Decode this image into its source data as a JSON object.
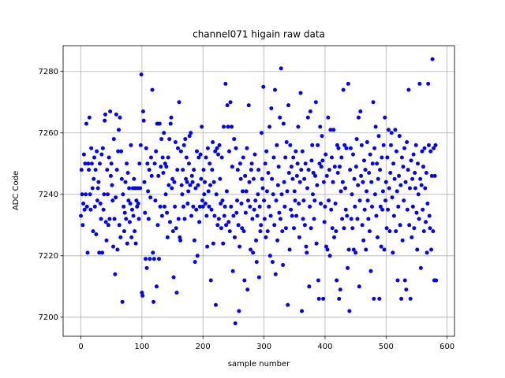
{
  "chart_data": {
    "type": "scatter",
    "title": "channel071 higain raw data",
    "x_label": "sample number",
    "y_label": "ADC Code",
    "color": "#0000ff",
    "grid": true,
    "xlim": [
      -29.1,
      612.1
    ],
    "ylim": [
      7193.8,
      7288.4
    ],
    "xticks": [
      0,
      100,
      200,
      300,
      400,
      500,
      600
    ],
    "yticks": [
      7200,
      7220,
      7240,
      7260,
      7280
    ],
    "x": [
      0,
      1,
      2,
      3,
      4,
      5,
      6,
      7,
      8,
      9,
      10,
      11,
      12,
      13,
      14,
      15,
      16,
      17,
      18,
      19,
      20,
      21,
      22,
      23,
      24,
      25,
      26,
      27,
      28,
      29,
      30,
      31,
      32,
      33,
      34,
      35,
      36,
      37,
      38,
      39,
      40,
      41,
      42,
      43,
      44,
      45,
      46,
      47,
      48,
      49,
      50,
      51,
      52,
      53,
      54,
      55,
      56,
      57,
      58,
      59,
      60,
      61,
      62,
      63,
      64,
      65,
      66,
      67,
      68,
      69,
      70,
      71,
      72,
      73,
      74,
      75,
      76,
      77,
      78,
      79,
      80,
      81,
      82,
      83,
      84,
      85,
      86,
      87,
      88,
      89,
      90,
      91,
      92,
      93,
      94,
      95,
      96,
      97,
      98,
      99,
      100,
      101,
      102,
      103,
      104,
      105,
      106,
      107,
      108,
      109,
      110,
      111,
      112,
      113,
      114,
      115,
      116,
      117,
      118,
      119,
      120,
      121,
      122,
      123,
      124,
      125,
      126,
      127,
      128,
      129,
      130,
      131,
      132,
      133,
      134,
      135,
      136,
      137,
      138,
      139,
      140,
      141,
      142,
      143,
      144,
      145,
      146,
      147,
      148,
      149,
      150,
      151,
      152,
      153,
      154,
      155,
      156,
      157,
      158,
      159,
      160,
      161,
      162,
      163,
      164,
      165,
      166,
      167,
      168,
      169,
      170,
      171,
      172,
      173,
      174,
      175,
      176,
      177,
      178,
      179,
      180,
      181,
      182,
      183,
      184,
      185,
      186,
      187,
      188,
      189,
      190,
      191,
      192,
      193,
      194,
      195,
      196,
      197,
      198,
      199,
      200,
      201,
      202,
      203,
      204,
      205,
      206,
      207,
      208,
      209,
      210,
      211,
      212,
      213,
      214,
      215,
      216,
      217,
      218,
      219,
      220,
      221,
      222,
      223,
      224,
      225,
      226,
      227,
      228,
      229,
      230,
      231,
      232,
      233,
      234,
      235,
      236,
      237,
      238,
      239,
      240,
      241,
      242,
      243,
      244,
      245,
      246,
      247,
      248,
      249,
      250,
      251,
      252,
      253,
      254,
      255,
      256,
      257,
      258,
      259,
      260,
      261,
      262,
      263,
      264,
      265,
      266,
      267,
      268,
      269,
      270,
      271,
      272,
      273,
      274,
      275,
      276,
      277,
      278,
      279,
      280,
      281,
      282,
      283,
      284,
      285,
      286,
      287,
      288,
      289,
      290,
      291,
      292,
      293,
      294,
      295,
      296,
      297,
      298,
      299,
      300,
      301,
      302,
      303,
      304,
      305,
      306,
      307,
      308,
      309,
      310,
      311,
      312,
      313,
      314,
      315,
      316,
      317,
      318,
      319,
      320,
      321,
      322,
      323,
      324,
      325,
      326,
      327,
      328,
      329,
      330,
      331,
      332,
      333,
      334,
      335,
      336,
      337,
      338,
      339,
      340,
      341,
      342,
      343,
      344,
      345,
      346,
      347,
      348,
      349,
      350,
      351,
      352,
      353,
      354,
      355,
      356,
      357,
      358,
      359,
      360,
      361,
      362,
      363,
      364,
      365,
      366,
      367,
      368,
      369,
      370,
      371,
      372,
      373,
      374,
      375,
      376,
      377,
      378,
      379,
      380,
      381,
      382,
      383,
      384,
      385,
      386,
      387,
      388,
      389,
      390,
      391,
      392,
      393,
      394,
      395,
      396,
      397,
      398,
      399,
      400,
      401,
      402,
      403,
      404,
      405,
      406,
      407,
      408,
      409,
      410,
      411,
      412,
      413,
      414,
      415,
      416,
      417,
      418,
      419,
      420,
      421,
      422,
      423,
      424,
      425,
      426,
      427,
      428,
      429,
      430,
      431,
      432,
      433,
      434,
      435,
      436,
      437,
      438,
      439,
      440,
      441,
      442,
      443,
      444,
      445,
      446,
      447,
      448,
      449,
      450,
      451,
      452,
      453,
      454,
      455,
      456,
      457,
      458,
      459,
      460,
      461,
      462,
      463,
      464,
      465,
      466,
      467,
      468,
      469,
      470,
      471,
      472,
      473,
      474,
      475,
      476,
      477,
      478,
      479,
      480,
      481,
      482,
      483,
      484,
      485,
      486,
      487,
      488,
      489,
      490,
      491,
      492,
      493,
      494,
      495,
      496,
      497,
      498,
      499,
      500,
      501,
      502,
      503,
      504,
      505,
      506,
      507,
      508,
      509,
      510,
      511,
      512,
      513,
      514,
      515,
      516,
      517,
      518,
      519,
      520,
      521,
      522,
      523,
      524,
      525,
      526,
      527,
      528,
      529,
      530,
      531,
      532,
      533,
      534,
      535,
      536,
      537,
      538,
      539,
      540,
      541,
      542,
      543,
      544,
      545,
      546,
      547,
      548,
      549,
      550,
      551,
      552,
      553,
      554,
      555,
      556,
      557,
      558,
      559,
      560,
      561,
      562,
      563,
      564,
      565,
      566,
      567,
      568,
      569,
      570,
      571,
      572,
      573,
      574,
      575,
      576,
      577,
      578,
      579,
      580,
      581,
      582
    ],
    "values": [
      7233,
      7248,
      7240,
      7230,
      7237,
      7253,
      7235,
      7250,
      7240,
      7263,
      7236,
      7221,
      7250,
      7248,
      7265,
      7240,
      7235,
      7255,
      7250,
      7242,
      7228,
      7245,
      7252,
      7236,
      7248,
      7227,
      7254,
      7238,
      7242,
      7244,
      7221,
      7250,
      7237,
      7232,
      7253,
      7221,
      7255,
      7235,
      7240,
      7264,
      7266,
      7231,
      7225,
      7248,
      7240,
      7230,
      7252,
      7232,
      7267,
      7246,
      7250,
      7243,
      7238,
      7223,
      7258,
      7232,
      7214,
      7239,
      7266,
      7248,
      7222,
      7254,
      7261,
      7230,
      7265,
      7226,
      7254,
      7245,
      7205,
      7240,
      7236,
      7228,
      7234,
      7244,
      7232,
      7250,
      7224,
      7247,
      7238,
      7242,
      7231,
      7237,
      7256,
      7226,
      7235,
      7242,
      7233,
      7245,
      7228,
      7242,
      7224,
      7238,
      7236,
      7242,
      7237,
      7232,
      7250,
      7242,
      7256,
      7279,
      7208,
      7207,
      7267,
      7264,
      7244,
      7234,
      7219,
      7255,
      7216,
      7250,
      7241,
      7232,
      7248,
      7219,
      7239,
      7252,
      7246,
      7274,
      7221,
      7205,
      7219,
      7250,
      7238,
      7254,
      7210,
      7263,
      7230,
      7246,
      7219,
      7263,
      7236,
      7249,
      7258,
      7233,
      7252,
      7247,
      7260,
      7236,
      7250,
      7240,
      7249,
      7234,
      7226,
      7252,
      7243,
      7258,
      7231,
      7263,
      7265,
      7242,
      7245,
      7228,
      7213,
      7244,
      7236,
      7257,
      7229,
      7208,
      7248,
      7255,
      7232,
      7270,
      7226,
      7225,
      7254,
      7243,
      7240,
      7248,
      7236,
      7256,
      7232,
      7258,
      7245,
      7252,
      7244,
      7237,
      7241,
      7250,
      7259,
      7243,
      7260,
      7233,
      7246,
      7244,
      7236,
      7248,
      7225,
      7218,
      7242,
      7235,
      7254,
      7220,
      7243,
      7252,
      7231,
      7236,
      7253,
      7245,
      7262,
      7238,
      7236,
      7248,
      7240,
      7244,
      7237,
      7252,
      7233,
      7223,
      7255,
      7241,
      7236,
      7250,
      7243,
      7212,
      7235,
      7248,
      7257,
      7224,
      7244,
      7233,
      7254,
      7204,
      7240,
      7255,
      7230,
      7253,
      7232,
      7256,
      7245,
      7237,
      7229,
      7252,
      7238,
      7224,
      7262,
      7233,
      7236,
      7276,
      7230,
      7241,
      7269,
      7262,
      7231,
      7254,
      7228,
      7270,
      7236,
      7262,
      7249,
      7215,
      7233,
      7258,
      7226,
      7198,
      7255,
      7234,
      7238,
      7248,
      7230,
      7202,
      7223,
      7250,
      7245,
      7237,
      7229,
      7241,
      7252,
      7228,
      7212,
      7246,
      7234,
      7241,
      7255,
      7209,
      7238,
      7269,
      7244,
      7236,
      7222,
      7248,
      7250,
      7232,
      7221,
      7245,
      7235,
      7253,
      7238,
      7225,
      7218,
      7233,
      7240,
      7248,
      7213,
      7236,
      7228,
      7230,
      7260,
      7245,
      7242,
      7275,
      7238,
      7232,
      7250,
      7226,
      7254,
      7241,
      7228,
      7247,
      7236,
      7262,
      7220,
      7233,
      7268,
      7245,
      7218,
      7240,
      7252,
      7230,
      7274,
      7214,
      7238,
      7256,
      7225,
      7243,
      7249,
      7234,
      7265,
      7232,
      7281,
      7240,
      7228,
      7217,
      7263,
      7244,
      7236,
      7252,
      7229,
      7257,
      7241,
      7204,
      7269,
      7247,
      7222,
      7256,
      7235,
      7249,
      7233,
      7245,
      7252,
      7229,
      7241,
      7238,
      7254,
      7233,
      7246,
      7250,
      7262,
      7237,
      7226,
      7244,
      7273,
      7248,
      7202,
      7254,
      7232,
      7238,
      7245,
      7230,
      7250,
      7223,
      7221,
      7242,
      7265,
      7248,
      7210,
      7236,
      7267,
      7229,
      7251,
      7256,
      7240,
      7247,
      7232,
      7238,
      7246,
      7270,
      7224,
      7243,
      7256,
      7212,
      7206,
      7250,
      7262,
      7237,
      7249,
      7259,
      7251,
      7206,
      7244,
      7231,
      7236,
      7253,
      7223,
      7246,
      7222,
      7265,
      7238,
      7248,
      7220,
      7261,
      7235,
      7252,
      7229,
      7244,
      7261,
      7226,
      7249,
      7237,
      7228,
      7212,
      7256,
      7247,
      7255,
      7206,
      7249,
      7209,
      7241,
      7252,
      7232,
      7244,
      7274,
      7229,
      7256,
      7242,
      7235,
      7255,
      7233,
      7216,
      7276,
      7222,
      7202,
      7248,
      7255,
      7232,
      7240,
      7229,
      7253,
      7222,
      7245,
      7236,
      7221,
      7249,
      7258,
      7232,
      7243,
      7265,
      7210,
      7238,
      7267,
      7246,
      7256,
      7230,
      7244,
      7225,
      7251,
      7235,
      7248,
      7222,
      7241,
      7257,
      7238,
      7232,
      7247,
      7228,
      7253,
      7215,
      7244,
      7236,
      7250,
      7270,
      7206,
      7255,
      7240,
      7262,
      7233,
      7250,
      7226,
      7245,
      7259,
      7206,
      7248,
      7236,
      7223,
      7252,
      7235,
      7241,
      7256,
      7222,
      7265,
      7238,
      7244,
      7229,
      7252,
      7235,
      7261,
      7242,
      7228,
      7247,
      7256,
      7260,
      7239,
      7221,
      7250,
      7233,
      7245,
      7261,
      7228,
      7254,
      7241,
      7212,
      7236,
      7246,
      7259,
      7230,
      7243,
      7206,
      7252,
      7225,
      7249,
      7238,
      7255,
      7212,
      7244,
      7209,
      7257,
      7235,
      7248,
      7274,
      7230,
      7242,
      7206,
      7251,
      7226,
      7245,
      7236,
      7253,
      7229,
      7247,
      7242,
      7256,
      7234,
      7222,
      7250,
      7240,
      7232,
      7276,
      7245,
      7216,
      7243,
      7254,
      7235,
      7249,
      7228,
      7255,
      7242,
      7231,
      7247,
      7221,
      7237,
      7276,
      7256,
      7233,
      7229,
      7254,
      7222,
      7246,
      7284,
      7228,
      7255,
      7212,
      7246,
      7256,
      7212
    ]
  }
}
